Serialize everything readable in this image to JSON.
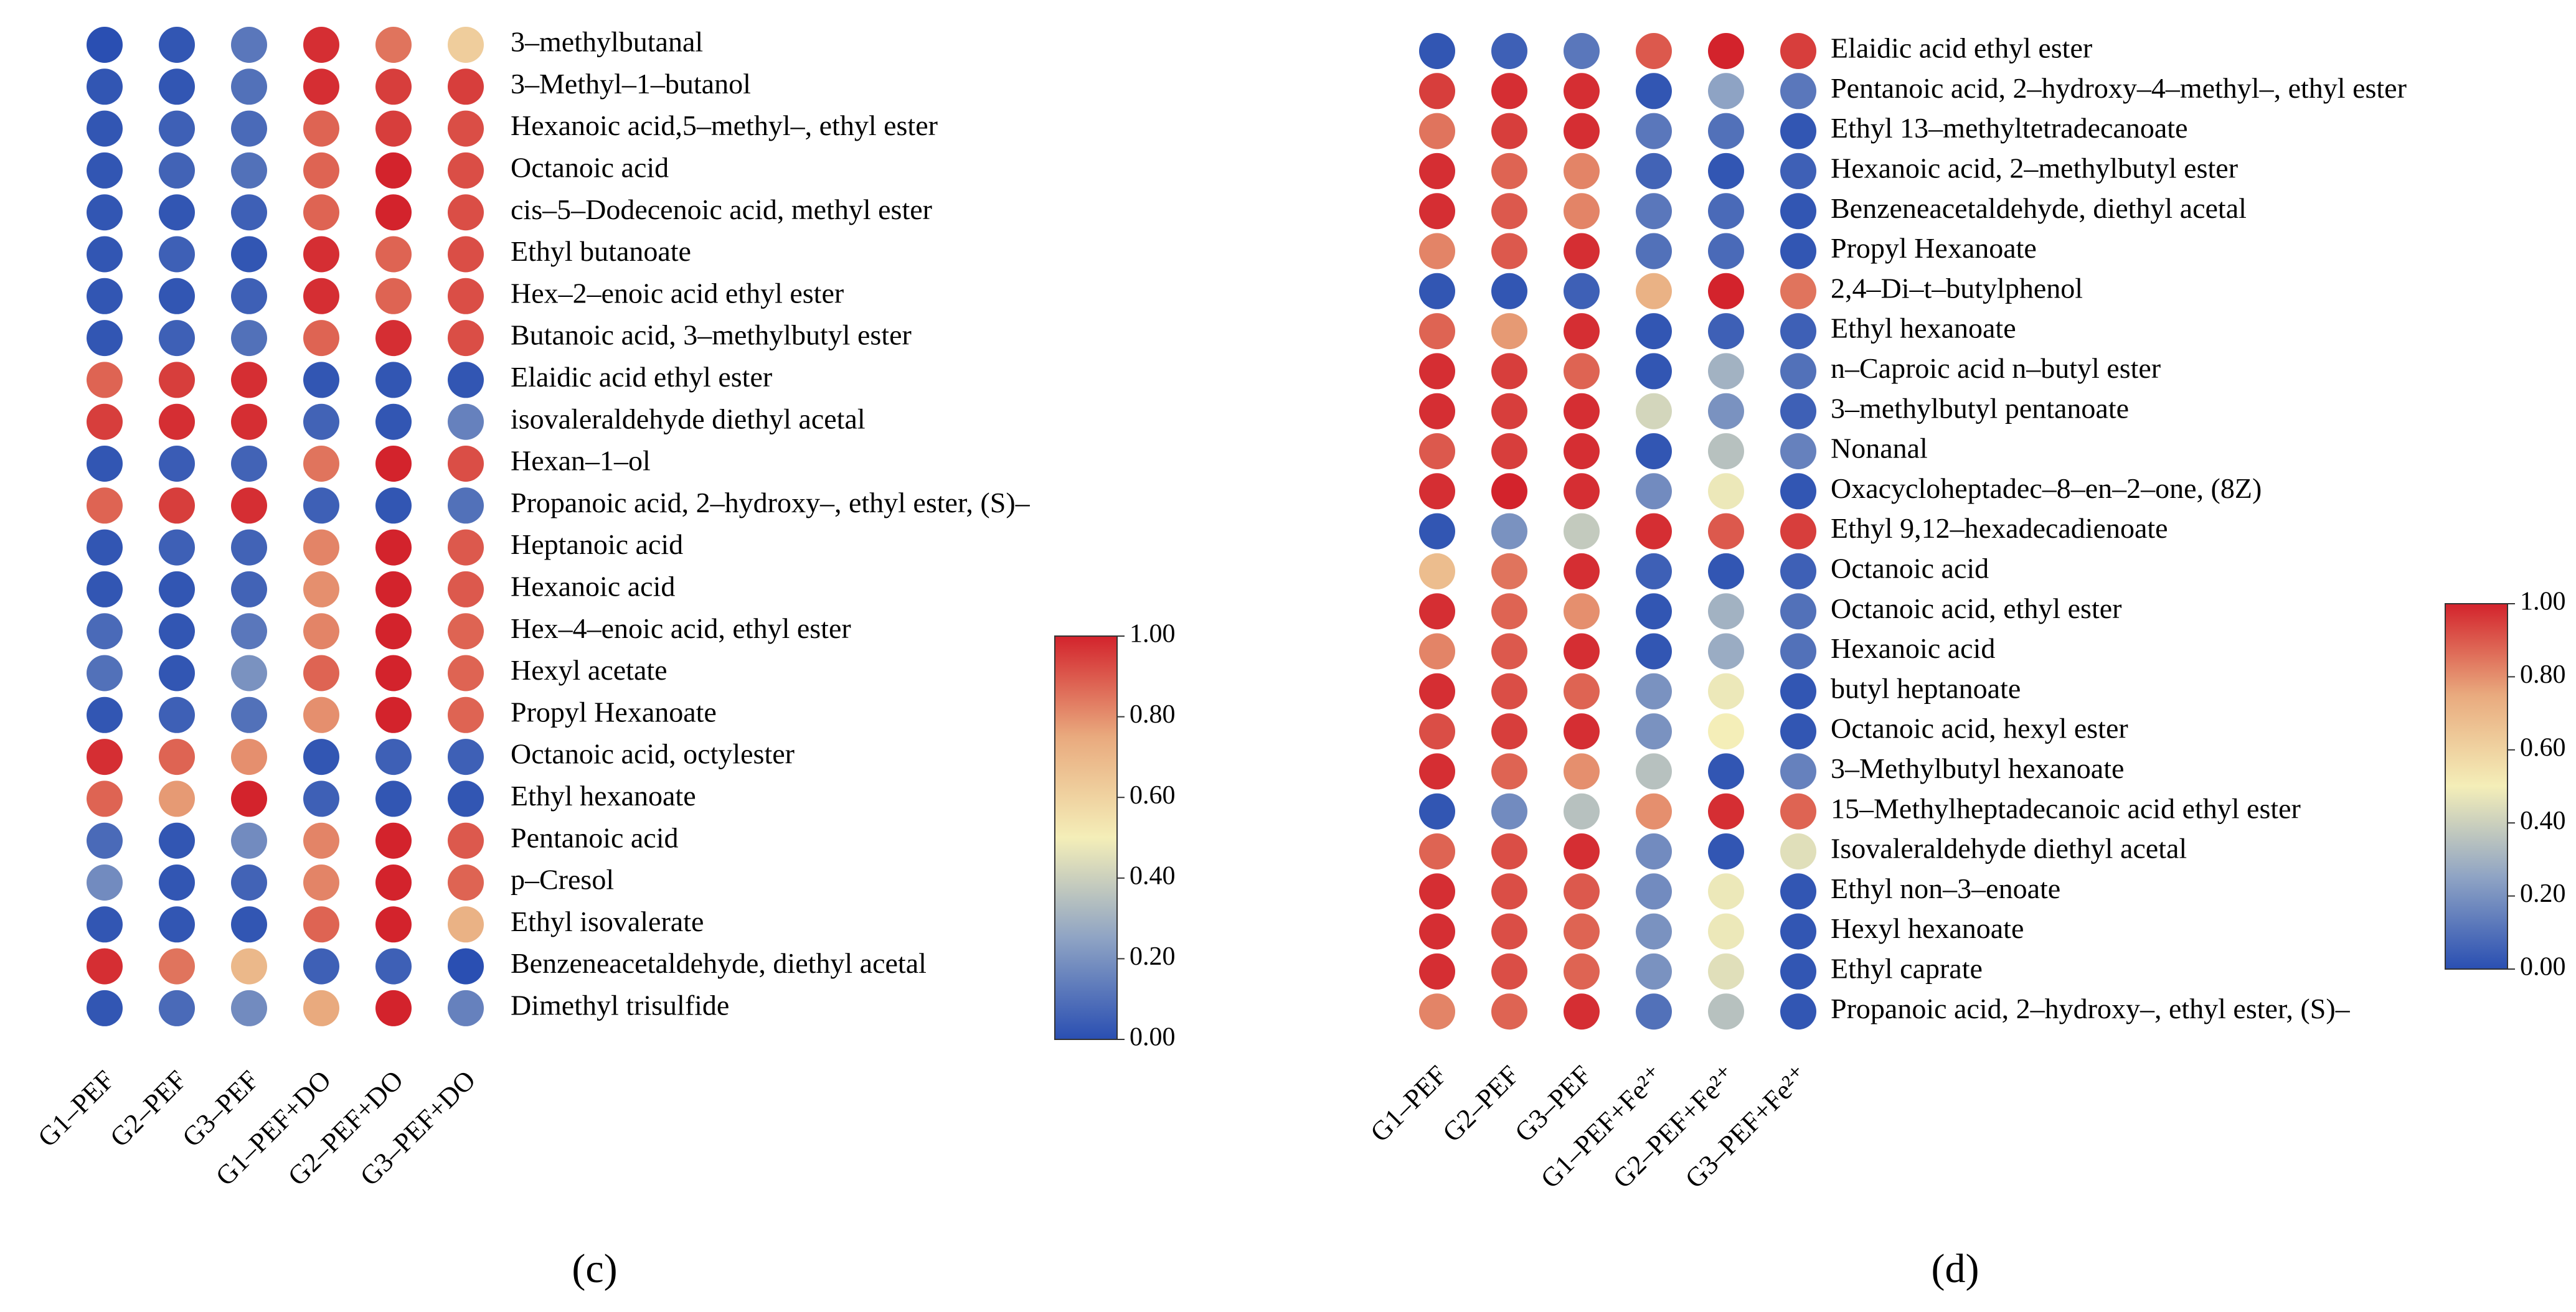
{
  "chart_data": [
    {
      "type": "heatmap",
      "panel_label": "c",
      "title": "",
      "columns": [
        "G1–PEF",
        "G2–PEF",
        "G3–PEF",
        "G1–PEF+DO",
        "G2–PEF+DO",
        "G3–PEF+DO"
      ],
      "rows": [
        "3–methylbutanal",
        "3–Methyl–1–butanol",
        "Hexanoic acid,5–methyl–, ethyl ester",
        "Octanoic acid",
        "cis–5–Dodecenoic acid, methyl ester",
        "Ethyl butanoate",
        "Hex–2–enoic acid ethyl ester",
        "Butanoic acid, 3–methylbutyl ester",
        "Elaidic acid ethyl ester",
        "isovaleraldehyde diethyl acetal",
        "Hexan–1–ol",
        "Propanoic acid, 2–hydroxy–, ethyl ester, (S)–",
        "Heptanoic acid",
        "Hexanoic acid",
        "Hex–4–enoic acid, ethyl ester",
        "Hexyl acetate",
        "Propyl Hexanoate",
        "Octanoic acid, octylester",
        "Ethyl hexanoate",
        "Pentanoic acid",
        "p–Cresol",
        "Ethyl isovalerate",
        "Benzeneacetaldehyde, diethyl acetal",
        "Dimethyl trisulfide"
      ],
      "values": [
        [
          0.0,
          0.02,
          0.12,
          0.98,
          0.85,
          0.62
        ],
        [
          0.02,
          0.02,
          0.1,
          0.98,
          0.95,
          0.95
        ],
        [
          0.02,
          0.05,
          0.08,
          0.88,
          0.95,
          0.92
        ],
        [
          0.02,
          0.06,
          0.1,
          0.88,
          1.0,
          0.92
        ],
        [
          0.02,
          0.02,
          0.05,
          0.88,
          1.0,
          0.92
        ],
        [
          0.02,
          0.05,
          0.02,
          0.98,
          0.88,
          0.92
        ],
        [
          0.02,
          0.02,
          0.05,
          0.98,
          0.88,
          0.92
        ],
        [
          0.02,
          0.05,
          0.1,
          0.88,
          0.98,
          0.92
        ],
        [
          0.88,
          0.95,
          0.98,
          0.02,
          0.02,
          0.02
        ],
        [
          0.95,
          0.98,
          0.98,
          0.06,
          0.02,
          0.15
        ],
        [
          0.02,
          0.04,
          0.06,
          0.85,
          1.0,
          0.92
        ],
        [
          0.88,
          0.95,
          0.98,
          0.05,
          0.02,
          0.1
        ],
        [
          0.02,
          0.05,
          0.06,
          0.82,
          1.0,
          0.9
        ],
        [
          0.02,
          0.02,
          0.06,
          0.8,
          1.0,
          0.9
        ],
        [
          0.08,
          0.02,
          0.12,
          0.82,
          1.0,
          0.88
        ],
        [
          0.1,
          0.02,
          0.2,
          0.88,
          1.0,
          0.88
        ],
        [
          0.02,
          0.05,
          0.1,
          0.8,
          1.0,
          0.88
        ],
        [
          0.98,
          0.88,
          0.8,
          0.02,
          0.05,
          0.05
        ],
        [
          0.88,
          0.78,
          1.0,
          0.05,
          0.02,
          0.02
        ],
        [
          0.08,
          0.02,
          0.18,
          0.82,
          1.0,
          0.9
        ],
        [
          0.18,
          0.02,
          0.06,
          0.82,
          1.0,
          0.88
        ],
        [
          0.02,
          0.02,
          0.02,
          0.88,
          1.0,
          0.72
        ],
        [
          0.98,
          0.85,
          0.7,
          0.05,
          0.05,
          0.0
        ],
        [
          0.02,
          0.08,
          0.18,
          0.75,
          1.0,
          0.15
        ]
      ],
      "colorbar": {
        "min": 0.0,
        "max": 1.0,
        "ticks": [
          "0.00",
          "0.20",
          "0.40",
          "0.60",
          "0.80",
          "1.00"
        ]
      }
    },
    {
      "type": "heatmap",
      "panel_label": "d",
      "title": "",
      "columns": [
        "G1–PEF",
        "G2–PEF",
        "G3–PEF",
        "G1–PEF+Fe²⁺",
        "G2–PEF+Fe²⁺",
        "G3–PEF+Fe²⁺"
      ],
      "rows": [
        "Elaidic acid ethyl ester",
        "Pentanoic acid, 2–hydroxy–4–methyl–, ethyl ester",
        "Ethyl 13–methyltetradecanoate",
        "Hexanoic acid, 2–methylbutyl ester",
        "Benzeneacetaldehyde, diethyl acetal",
        "Propyl Hexanoate",
        "2,4–Di–t–butylphenol",
        "Ethyl hexanoate",
        "n–Caproic acid n–butyl ester",
        "3–methylbutyl pentanoate",
        "Nonanal",
        "Oxacycloheptadec–8–en–2–one, (8Z)",
        "Ethyl 9,12–hexadecadienoate",
        "Octanoic acid",
        "Octanoic acid, ethyl ester",
        "Hexanoic acid",
        "butyl heptanoate",
        "Octanoic acid, hexyl ester",
        "3–Methylbutyl hexanoate",
        "15–Methylheptadecanoic acid ethyl ester",
        "Isovaleraldehyde diethyl acetal",
        "Ethyl non–3–enoate",
        "Hexyl hexanoate",
        "Ethyl caprate",
        "Propanoic acid, 2–hydroxy–, ethyl ester, (S)–"
      ],
      "values": [
        [
          0.02,
          0.05,
          0.12,
          0.9,
          1.0,
          0.95
        ],
        [
          0.95,
          0.98,
          0.98,
          0.02,
          0.25,
          0.12
        ],
        [
          0.85,
          0.95,
          0.98,
          0.12,
          0.1,
          0.02
        ],
        [
          0.98,
          0.88,
          0.82,
          0.06,
          0.02,
          0.05
        ],
        [
          0.98,
          0.9,
          0.82,
          0.12,
          0.08,
          0.02
        ],
        [
          0.82,
          0.9,
          0.98,
          0.1,
          0.08,
          0.02
        ],
        [
          0.02,
          0.02,
          0.05,
          0.72,
          1.0,
          0.85
        ],
        [
          0.88,
          0.78,
          0.98,
          0.02,
          0.05,
          0.05
        ],
        [
          0.98,
          0.95,
          0.88,
          0.02,
          0.3,
          0.1
        ],
        [
          0.98,
          0.95,
          0.98,
          0.42,
          0.2,
          0.05
        ],
        [
          0.9,
          0.95,
          0.98,
          0.02,
          0.35,
          0.15
        ],
        [
          0.98,
          1.0,
          0.98,
          0.18,
          0.48,
          0.02
        ],
        [
          0.02,
          0.2,
          0.38,
          0.98,
          0.9,
          0.95
        ],
        [
          0.68,
          0.85,
          0.98,
          0.05,
          0.02,
          0.05
        ],
        [
          0.98,
          0.88,
          0.8,
          0.02,
          0.3,
          0.1
        ],
        [
          0.82,
          0.9,
          0.98,
          0.02,
          0.28,
          0.1
        ],
        [
          0.98,
          0.92,
          0.88,
          0.2,
          0.48,
          0.02
        ],
        [
          0.92,
          0.95,
          0.98,
          0.2,
          0.5,
          0.02
        ],
        [
          0.98,
          0.88,
          0.8,
          0.35,
          0.02,
          0.15
        ],
        [
          0.02,
          0.18,
          0.35,
          0.8,
          0.98,
          0.88
        ],
        [
          0.88,
          0.92,
          0.98,
          0.18,
          0.02,
          0.45
        ],
        [
          0.98,
          0.92,
          0.9,
          0.18,
          0.48,
          0.02
        ],
        [
          0.98,
          0.92,
          0.88,
          0.2,
          0.48,
          0.02
        ],
        [
          0.98,
          0.92,
          0.88,
          0.2,
          0.45,
          0.02
        ],
        [
          0.82,
          0.88,
          0.98,
          0.1,
          0.35,
          0.02
        ]
      ],
      "colorbar": {
        "min": 0.0,
        "max": 1.0,
        "ticks": [
          "0.00",
          "0.20",
          "0.40",
          "0.60",
          "0.80",
          "1.00"
        ]
      }
    }
  ],
  "panel_labels": {
    "c": "(c)",
    "d": "(d)"
  },
  "colormap_stops": [
    "#2a4fb2",
    "#8ea3c4",
    "#f4eeb8",
    "#e9aa7e",
    "#d3232c"
  ]
}
